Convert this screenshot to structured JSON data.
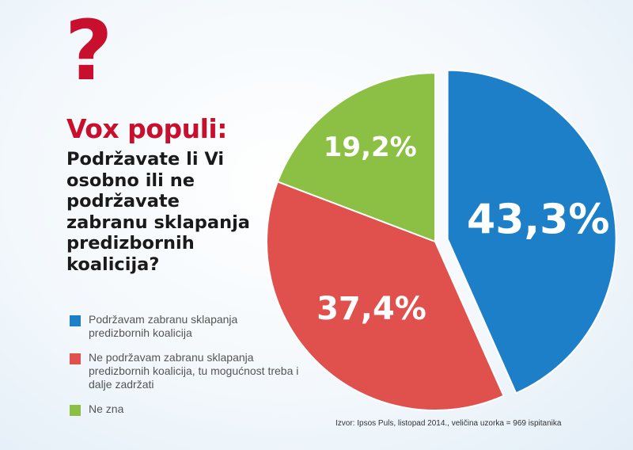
{
  "header": {
    "symbol": "?",
    "title": "Vox populi:",
    "question": "Podržavate li Vi osobno ili ne podržavate zabranu sklapanja predizbornih koalicija?"
  },
  "colors": {
    "accent": "#c8102e",
    "blue": "#1d7fc7",
    "red": "#e0504c",
    "green": "#8cc045"
  },
  "chart_data": {
    "type": "pie",
    "slices": [
      {
        "name": "Podržavam zabranu sklapanja predizbornih koalicija",
        "value": 43.3,
        "label": "43,3%",
        "color": "#1d7fc7",
        "exploded": true
      },
      {
        "name": "Ne podržavam zabranu sklapanja predizbornih koalicija, tu mogućnost treba i dalje zadržati",
        "value": 37.4,
        "label": "37,4%",
        "color": "#e0504c",
        "exploded": false
      },
      {
        "name": "Ne zna",
        "value": 19.2,
        "label": "19,2%",
        "color": "#8cc045",
        "exploded": false
      }
    ],
    "legend_placement": "bottom-left"
  },
  "source": "Izvor: Ipsos Puls, listopad 2014., veličina uzorka = 969 ispitanika"
}
